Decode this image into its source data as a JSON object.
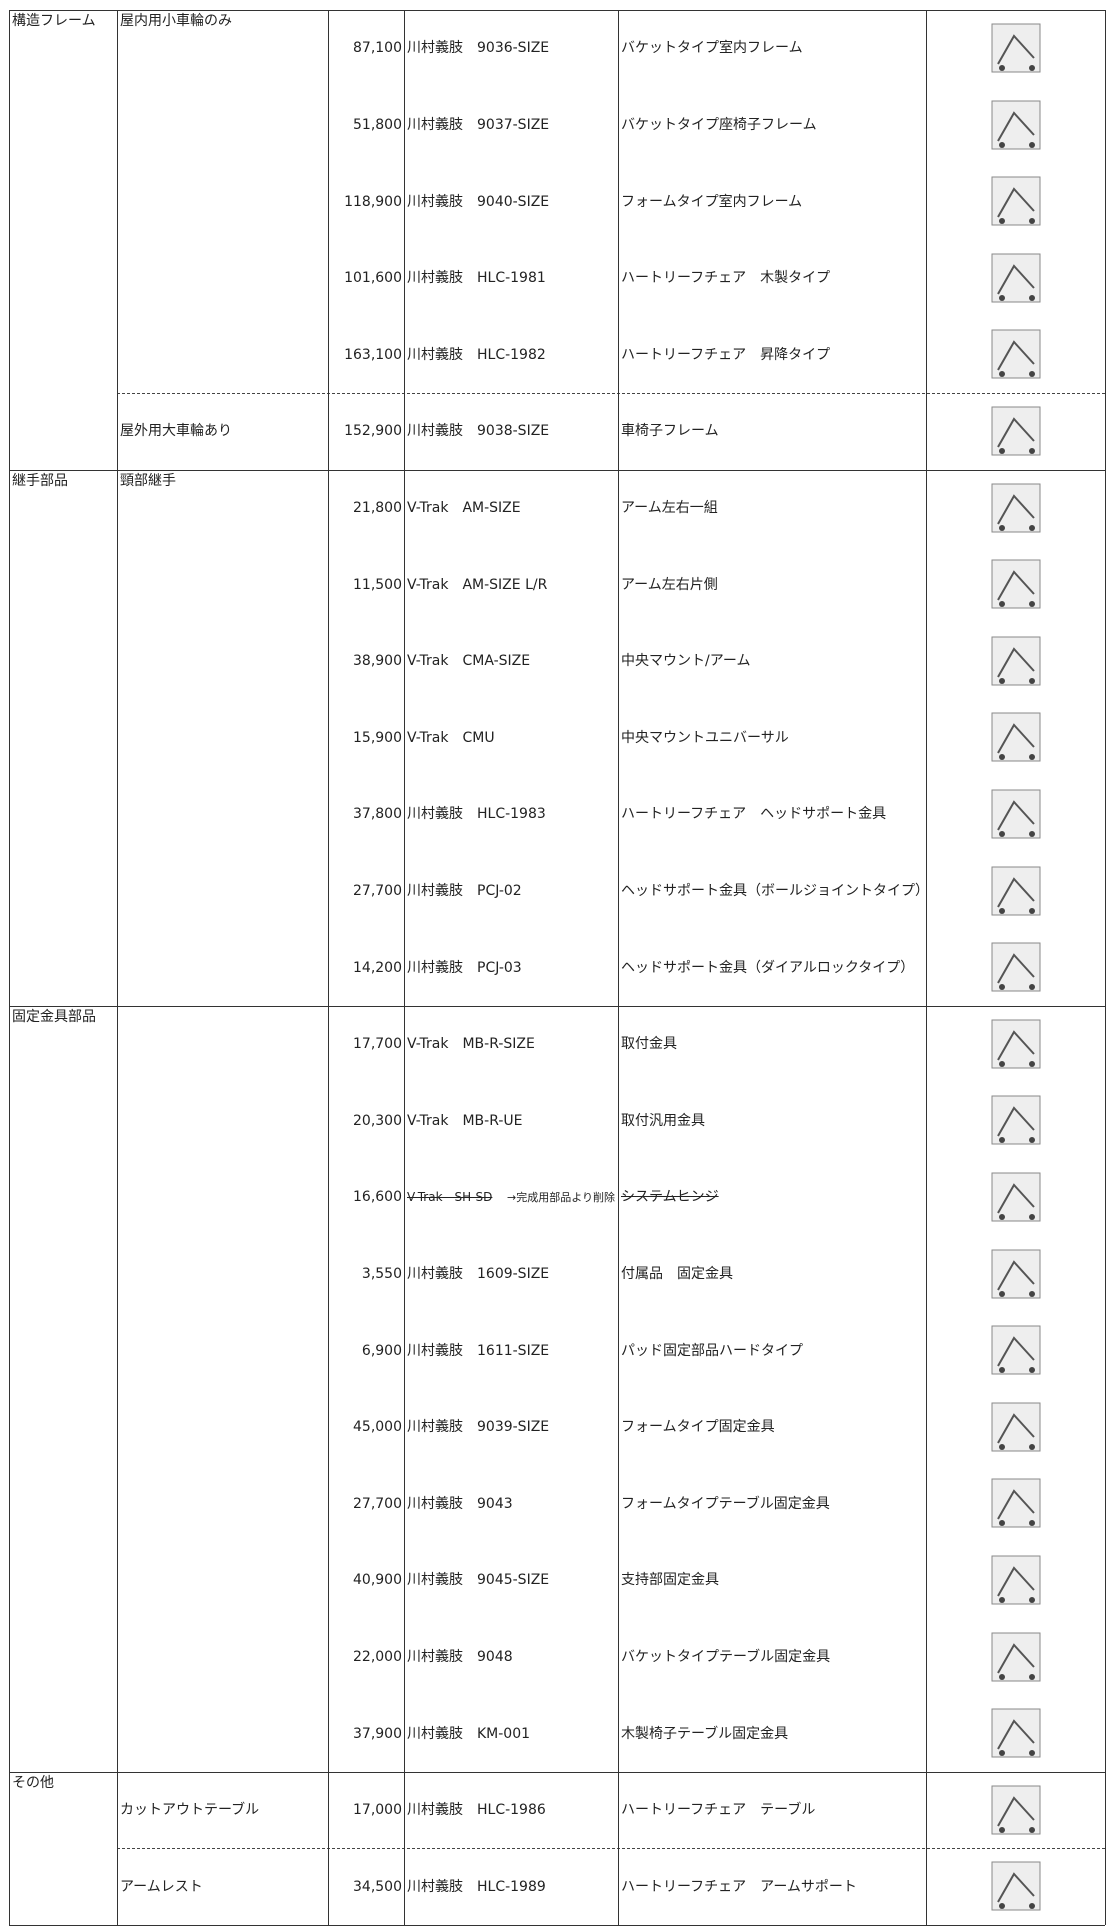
{
  "table": {
    "groups": [
      {
        "category": "構造フレーム",
        "subgroups": [
          {
            "name": "屋内用小車輪のみ",
            "rows": [
              {
                "price": "87,100",
                "model": "川村義肢　9036-SIZE",
                "description": "バケットタイプ室内フレーム"
              },
              {
                "price": "51,800",
                "model": "川村義肢　9037-SIZE",
                "description": "バケットタイプ座椅子フレーム"
              },
              {
                "price": "118,900",
                "model": "川村義肢　9040-SIZE",
                "description": "フォームタイプ室内フレーム"
              },
              {
                "price": "101,600",
                "model": "川村義肢　HLC-1981",
                "description": "ハートリーフチェア　木製タイプ"
              },
              {
                "price": "163,100",
                "model": "川村義肢　HLC-1982",
                "description": "ハートリーフチェア　昇降タイプ"
              }
            ]
          },
          {
            "name": "屋外用大車輪あり",
            "rows": [
              {
                "price": "152,900",
                "model": "川村義肢　9038-SIZE",
                "description": "車椅子フレーム"
              }
            ]
          }
        ]
      },
      {
        "category": "継手部品",
        "subgroups": [
          {
            "name": "頸部継手",
            "rows": [
              {
                "price": "21,800",
                "model": "V-Trak　AM-SIZE",
                "description": "アーム左右一組"
              },
              {
                "price": "11,500",
                "model": "V-Trak　AM-SIZE L/R",
                "description": "アーム左右片側"
              },
              {
                "price": "38,900",
                "model": "V-Trak　CMA-SIZE",
                "description": "中央マウント/アーム"
              },
              {
                "price": "15,900",
                "model": "V-Trak　CMU",
                "description": "中央マウントユニバーサル"
              },
              {
                "price": "37,800",
                "model": "川村義肢　HLC-1983",
                "description": "ハートリーフチェア　ヘッドサポート金具"
              },
              {
                "price": "27,700",
                "model": "川村義肢　PCJ-02",
                "description": "ヘッドサポート金具（ボールジョイントタイプ）"
              },
              {
                "price": "14,200",
                "model": "川村義肢　PCJ-03",
                "description": "ヘッドサポート金具（ダイアルロックタイプ）"
              }
            ]
          }
        ]
      },
      {
        "category": "固定金具部品",
        "subgroups": [
          {
            "rows": [
              {
                "price": "17,700",
                "model": "V-Trak　MB-R-SIZE",
                "description": "取付金具"
              },
              {
                "price": "20,300",
                "model": "V-Trak　MB-R-UE",
                "description": "取付汎用金具"
              },
              {
                "price": "16,600",
                "model": "V-Trak　SH-SD",
                "note": "→完成用部品より削除",
                "description": "システムヒンジ",
                "struck": true
              },
              {
                "price": "3,550",
                "model": "川村義肢　1609-SIZE",
                "description": "付属品　固定金具"
              },
              {
                "price": "6,900",
                "model": "川村義肢　1611-SIZE",
                "description": "パッド固定部品ハードタイプ"
              },
              {
                "price": "45,000",
                "model": "川村義肢　9039-SIZE",
                "description": "フォームタイプ固定金具"
              },
              {
                "price": "27,700",
                "model": "川村義肢　9043",
                "description": "フォームタイプテーブル固定金具"
              },
              {
                "price": "40,900",
                "model": "川村義肢　9045-SIZE",
                "description": "支持部固定金具"
              },
              {
                "price": "22,000",
                "model": "川村義肢　9048",
                "description": "バケットタイプテーブル固定金具"
              },
              {
                "price": "37,900",
                "model": "川村義肢　KM-001",
                "description": "木製椅子テーブル固定金具"
              }
            ]
          }
        ]
      },
      {
        "category": "その他",
        "subgroups": [
          {
            "name": "カットアウトテーブル",
            "rows": [
              {
                "price": "17,000",
                "model": "川村義肢　HLC-1986",
                "description": "ハートリーフチェア　テーブル"
              }
            ]
          },
          {
            "name": "アームレスト",
            "rows": [
              {
                "price": "34,500",
                "model": "川村義肢　HLC-1989",
                "description": "ハートリーフチェア　アームサポート"
              }
            ]
          }
        ]
      }
    ]
  }
}
